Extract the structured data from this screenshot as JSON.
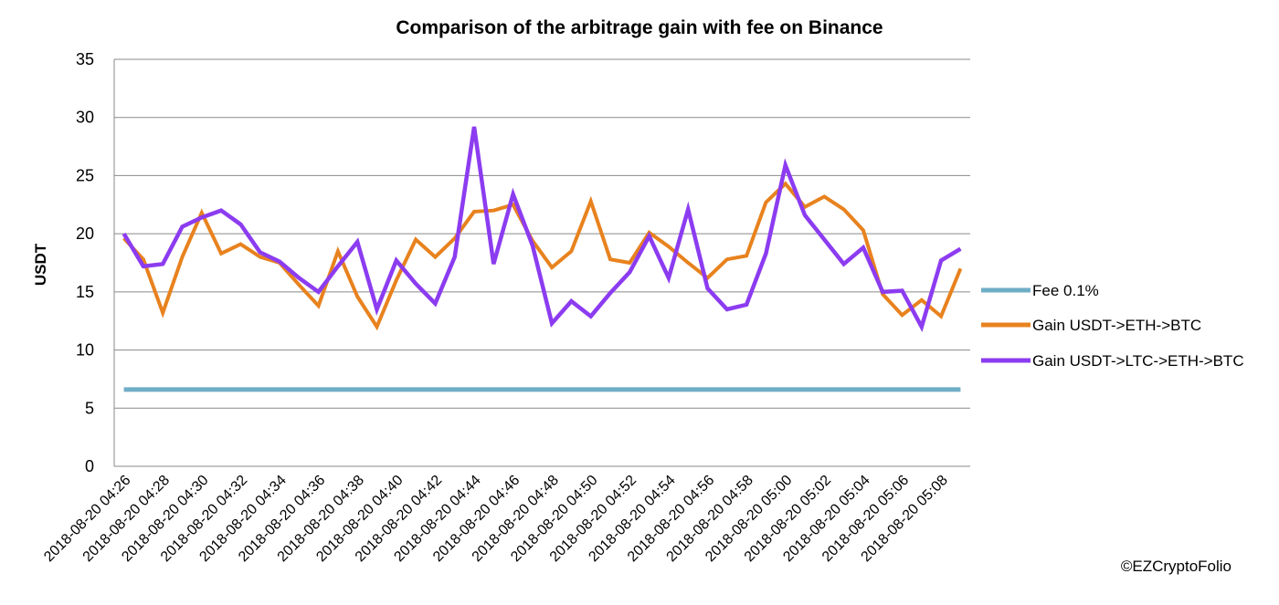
{
  "chart_data": {
    "type": "line",
    "title": "Comparison of the arbitrage gain with fee on Binance",
    "xlabel": "",
    "ylabel": "USDT",
    "ylim": [
      0,
      35
    ],
    "yticks": [
      0,
      5,
      10,
      15,
      20,
      25,
      30,
      35
    ],
    "grid": "horizontal",
    "legend_position": "right",
    "x": [
      "2018-08-20 04:26",
      "2018-08-20 04:27",
      "2018-08-20 04:28",
      "2018-08-20 04:29",
      "2018-08-20 04:30",
      "2018-08-20 04:31",
      "2018-08-20 04:32",
      "2018-08-20 04:33",
      "2018-08-20 04:34",
      "2018-08-20 04:35",
      "2018-08-20 04:36",
      "2018-08-20 04:37",
      "2018-08-20 04:38",
      "2018-08-20 04:39",
      "2018-08-20 04:40",
      "2018-08-20 04:41",
      "2018-08-20 04:42",
      "2018-08-20 04:43",
      "2018-08-20 04:44",
      "2018-08-20 04:45",
      "2018-08-20 04:46",
      "2018-08-20 04:47",
      "2018-08-20 04:48",
      "2018-08-20 04:49",
      "2018-08-20 04:50",
      "2018-08-20 04:51",
      "2018-08-20 04:52",
      "2018-08-20 04:53",
      "2018-08-20 04:54",
      "2018-08-20 04:55",
      "2018-08-20 04:56",
      "2018-08-20 04:57",
      "2018-08-20 04:58",
      "2018-08-20 04:59",
      "2018-08-20 05:00",
      "2018-08-20 05:01",
      "2018-08-20 05:02",
      "2018-08-20 05:03",
      "2018-08-20 05:04",
      "2018-08-20 05:05",
      "2018-08-20 05:06",
      "2018-08-20 05:07",
      "2018-08-20 05:08",
      "2018-08-20 05:09"
    ],
    "x_tick_labels": [
      "2018-08-20 04:26",
      "2018-08-20 04:28",
      "2018-08-20 04:30",
      "2018-08-20 04:32",
      "2018-08-20 04:34",
      "2018-08-20 04:36",
      "2018-08-20 04:38",
      "2018-08-20 04:40",
      "2018-08-20 04:42",
      "2018-08-20 04:44",
      "2018-08-20 04:46",
      "2018-08-20 04:48",
      "2018-08-20 04:50",
      "2018-08-20 04:52",
      "2018-08-20 04:54",
      "2018-08-20 04:56",
      "2018-08-20 04:58",
      "2018-08-20 05:00",
      "2018-08-20 05:02",
      "2018-08-20 05:04",
      "2018-08-20 05:06",
      "2018-08-20 05:08"
    ],
    "series": [
      {
        "name": "Fee 0.1%",
        "color": "#6fadc7",
        "values": [
          6.6,
          6.6,
          6.6,
          6.6,
          6.6,
          6.6,
          6.6,
          6.6,
          6.6,
          6.6,
          6.6,
          6.6,
          6.6,
          6.6,
          6.6,
          6.6,
          6.6,
          6.6,
          6.6,
          6.6,
          6.6,
          6.6,
          6.6,
          6.6,
          6.6,
          6.6,
          6.6,
          6.6,
          6.6,
          6.6,
          6.6,
          6.6,
          6.6,
          6.6,
          6.6,
          6.6,
          6.6,
          6.6,
          6.6,
          6.6,
          6.6,
          6.6,
          6.6,
          6.6
        ]
      },
      {
        "name": "Gain USDT->ETH->BTC",
        "color": "#e8821e",
        "values": [
          19.6,
          17.8,
          13.2,
          18.0,
          21.8,
          18.3,
          19.1,
          18.0,
          17.5,
          15.6,
          13.8,
          18.5,
          14.6,
          12.0,
          16.0,
          19.5,
          18.0,
          19.6,
          21.9,
          22.0,
          22.5,
          19.4,
          17.1,
          18.5,
          22.8,
          17.8,
          17.5,
          20.1,
          18.9,
          17.5,
          16.2,
          17.8,
          18.1,
          22.7,
          24.3,
          22.3,
          23.2,
          22.1,
          20.3,
          14.8,
          13.0,
          14.3,
          12.9,
          17.0
        ]
      },
      {
        "name": "Gain USDT->LTC->ETH->BTC",
        "color": "#8c3cf0",
        "values": [
          20.0,
          17.2,
          17.4,
          20.6,
          21.4,
          22.0,
          20.8,
          18.4,
          17.6,
          16.2,
          15.0,
          17.2,
          19.3,
          13.5,
          17.7,
          15.7,
          14.0,
          18.0,
          29.2,
          17.4,
          23.4,
          19.0,
          12.3,
          14.2,
          12.9,
          14.9,
          16.7,
          19.8,
          16.2,
          22.1,
          15.3,
          13.5,
          13.9,
          18.3,
          25.9,
          21.6,
          19.5,
          17.4,
          18.8,
          15.0,
          15.1,
          12.0,
          17.7,
          18.7
        ]
      }
    ]
  },
  "credit": "©EZCryptoFolio"
}
